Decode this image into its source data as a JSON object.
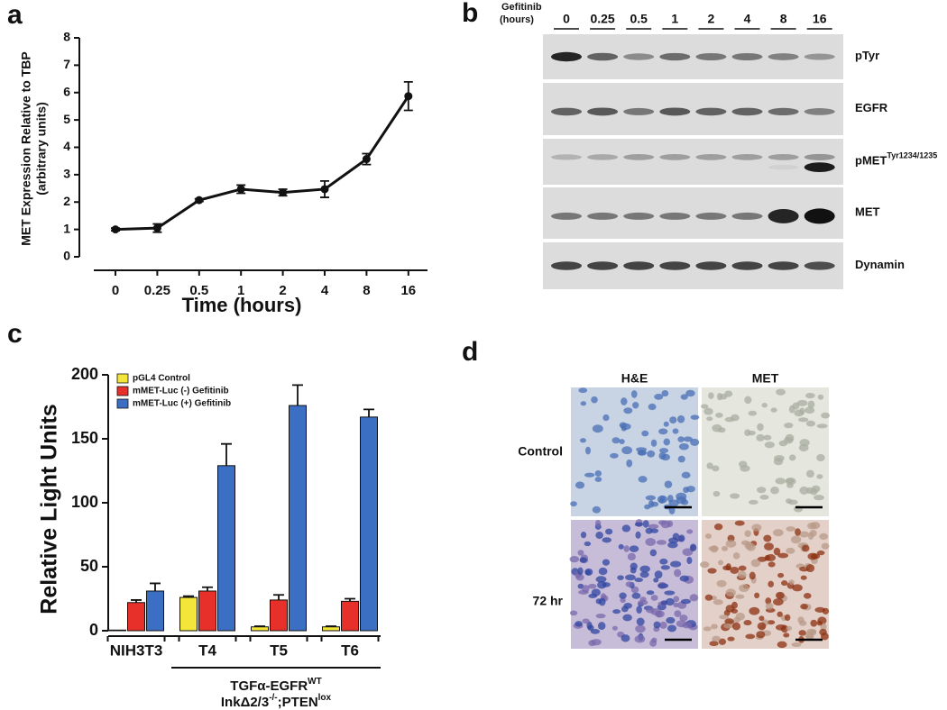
{
  "panel_labels": [
    "a",
    "b",
    "c",
    "d"
  ],
  "chart_data": [
    {
      "type": "line",
      "ylabel": [
        "MET Expression Relative to TBP",
        "(arbitrary units)"
      ],
      "xlabel": "Time (hours)",
      "categories": [
        "0",
        "0.25",
        "0.5",
        "1",
        "2",
        "4",
        "8",
        "16"
      ],
      "values": [
        1,
        1.05,
        2.07,
        2.47,
        2.35,
        2.47,
        3.57,
        5.87
      ],
      "errors": [
        0.05,
        0.15,
        0.05,
        0.15,
        0.12,
        0.3,
        0.2,
        0.52
      ],
      "color": "#111111",
      "ylim": [
        0,
        8
      ],
      "yticks": [
        0,
        1,
        2,
        3,
        4,
        5,
        6,
        7,
        8
      ]
    },
    {
      "type": "bar",
      "ylabel": "Relative Light Units",
      "categories": [
        "NIH3T3",
        "T4",
        "T5",
        "T6"
      ],
      "series": [
        {
          "name": "pGL4 Control",
          "color": "#f3e53a",
          "values": [
            0.5,
            26,
            3,
            3
          ],
          "errors": [
            0,
            1,
            0.5,
            0.5
          ]
        },
        {
          "name": "mMET-Luc (-) Gefitinib",
          "color": "#e8302a",
          "values": [
            22,
            31,
            24,
            23
          ],
          "errors": [
            2,
            3,
            4,
            2
          ]
        },
        {
          "name": "mMET-Luc (+) Gefitinib",
          "color": "#3b6fc4",
          "values": [
            31,
            129,
            176,
            167
          ],
          "errors": [
            6,
            17,
            16,
            6
          ]
        }
      ],
      "ylim": [
        0,
        200
      ],
      "yticks": [
        0,
        50,
        100,
        150,
        200
      ],
      "group_annotation": {
        "line1": [
          "TGFα-EGFR",
          "WT"
        ],
        "line2": [
          "InkΔ2/3",
          "-/-",
          ";PTEN",
          "lox"
        ]
      }
    }
  ],
  "blot": {
    "treatment": "Gefitinib",
    "unit": "(hours)",
    "lanes": [
      "0",
      "0.25",
      "0.5",
      "1",
      "2",
      "4",
      "8",
      "16"
    ],
    "rows": [
      {
        "label": "pTyr"
      },
      {
        "label": "EGFR"
      },
      {
        "label": "pMET",
        "superscript": "Tyr1234/1235"
      },
      {
        "label": "MET"
      },
      {
        "label": "Dynamin"
      }
    ]
  },
  "histology": {
    "columns": [
      "H&E",
      "MET"
    ],
    "rows": [
      "Control",
      "72 hr"
    ]
  }
}
